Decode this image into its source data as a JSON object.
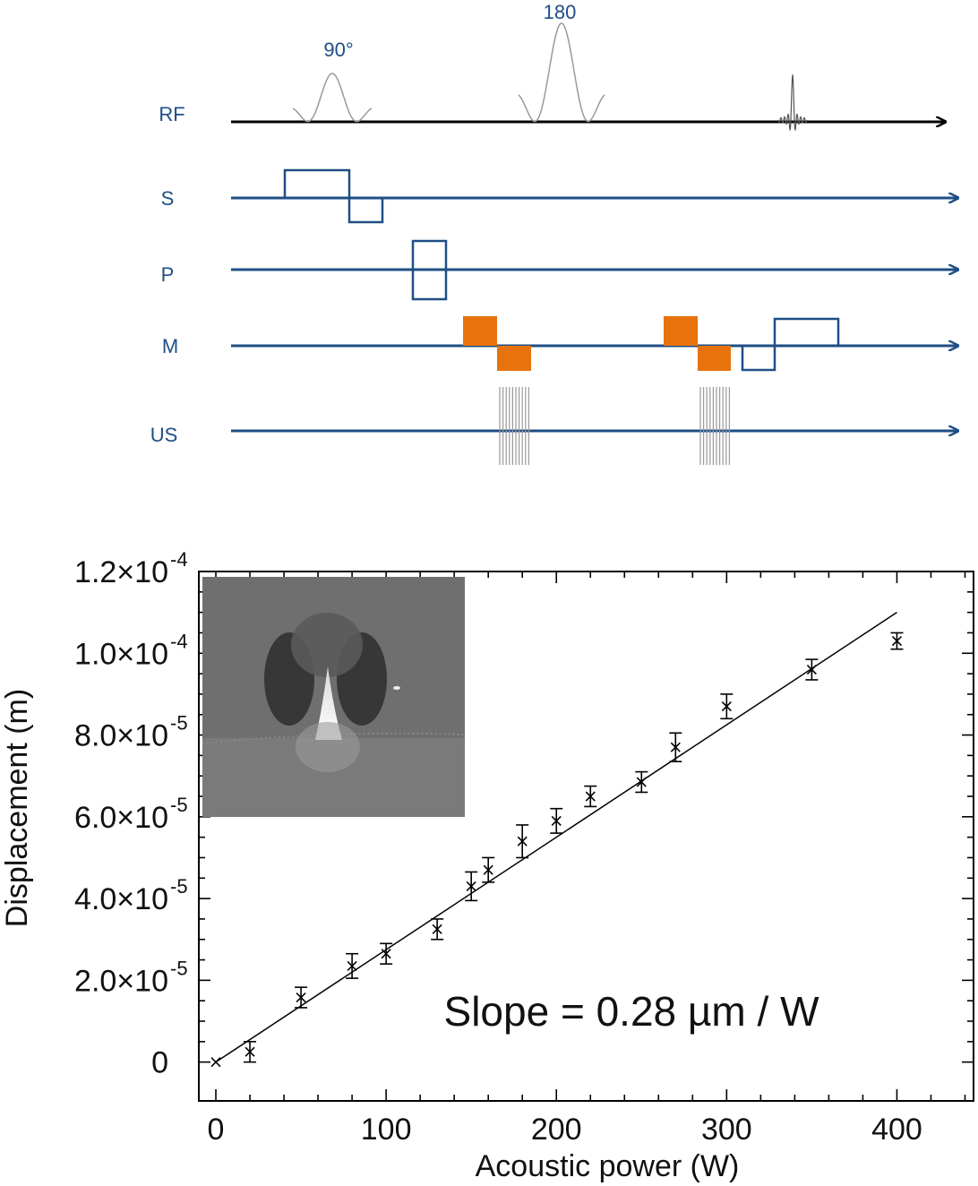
{
  "pulse_diagram": {
    "channels": [
      "RF",
      "S",
      "P",
      "M",
      "US"
    ],
    "pulse_labels": {
      "rf_90": "90°",
      "rf_180": "180"
    },
    "colors": {
      "axis_blue": "#1f4e86",
      "msg_orange": "#e8720c",
      "rf_arrow": "#000000",
      "rf_pulse": "#999999"
    }
  },
  "chart_data": {
    "type": "scatter",
    "xlabel": "Acoustic power (W)",
    "ylabel": "Displacement (m)",
    "xlim": [
      -10,
      445
    ],
    "ylim": [
      -9.5e-06,
      0.00012
    ],
    "x_ticks": [
      "0",
      "100",
      "200",
      "300",
      "400"
    ],
    "y_ticks": [
      {
        "mantissa": "0",
        "exp": ""
      },
      {
        "mantissa": "2.0×10",
        "exp": "-5"
      },
      {
        "mantissa": "4.0×10",
        "exp": "-5"
      },
      {
        "mantissa": "6.0×10",
        "exp": "-5"
      },
      {
        "mantissa": "8.0×10",
        "exp": "-5"
      },
      {
        "mantissa": "1.0×10",
        "exp": "-4"
      },
      {
        "mantissa": "1.2×10",
        "exp": "-4"
      }
    ],
    "annotation": "Slope = 0.28 µm / W",
    "points": [
      {
        "x": 0,
        "y": 0.0,
        "err": 0.0
      },
      {
        "x": 20,
        "y": 2.5e-06,
        "err": 2.5e-06
      },
      {
        "x": 50,
        "y": 1.58e-05,
        "err": 2.5e-06
      },
      {
        "x": 80,
        "y": 2.35e-05,
        "err": 3e-06
      },
      {
        "x": 100,
        "y": 2.65e-05,
        "err": 2.5e-06
      },
      {
        "x": 130,
        "y": 3.25e-05,
        "err": 2.5e-06
      },
      {
        "x": 150,
        "y": 4.3e-05,
        "err": 3.5e-06
      },
      {
        "x": 160,
        "y": 4.7e-05,
        "err": 3e-06
      },
      {
        "x": 180,
        "y": 5.4e-05,
        "err": 4e-06
      },
      {
        "x": 200,
        "y": 5.9e-05,
        "err": 3e-06
      },
      {
        "x": 220,
        "y": 6.5e-05,
        "err": 2.5e-06
      },
      {
        "x": 250,
        "y": 6.85e-05,
        "err": 2.5e-06
      },
      {
        "x": 270,
        "y": 7.7e-05,
        "err": 3.5e-06
      },
      {
        "x": 300,
        "y": 8.7e-05,
        "err": 3e-06
      },
      {
        "x": 350,
        "y": 9.6e-05,
        "err": 2.5e-06
      },
      {
        "x": 400,
        "y": 0.000103,
        "err": 2e-06
      }
    ],
    "fit_line": {
      "x": [
        0,
        400
      ],
      "y": [
        0.0,
        0.00011
      ]
    },
    "inset": "grayscale displacement map (inset image)"
  }
}
